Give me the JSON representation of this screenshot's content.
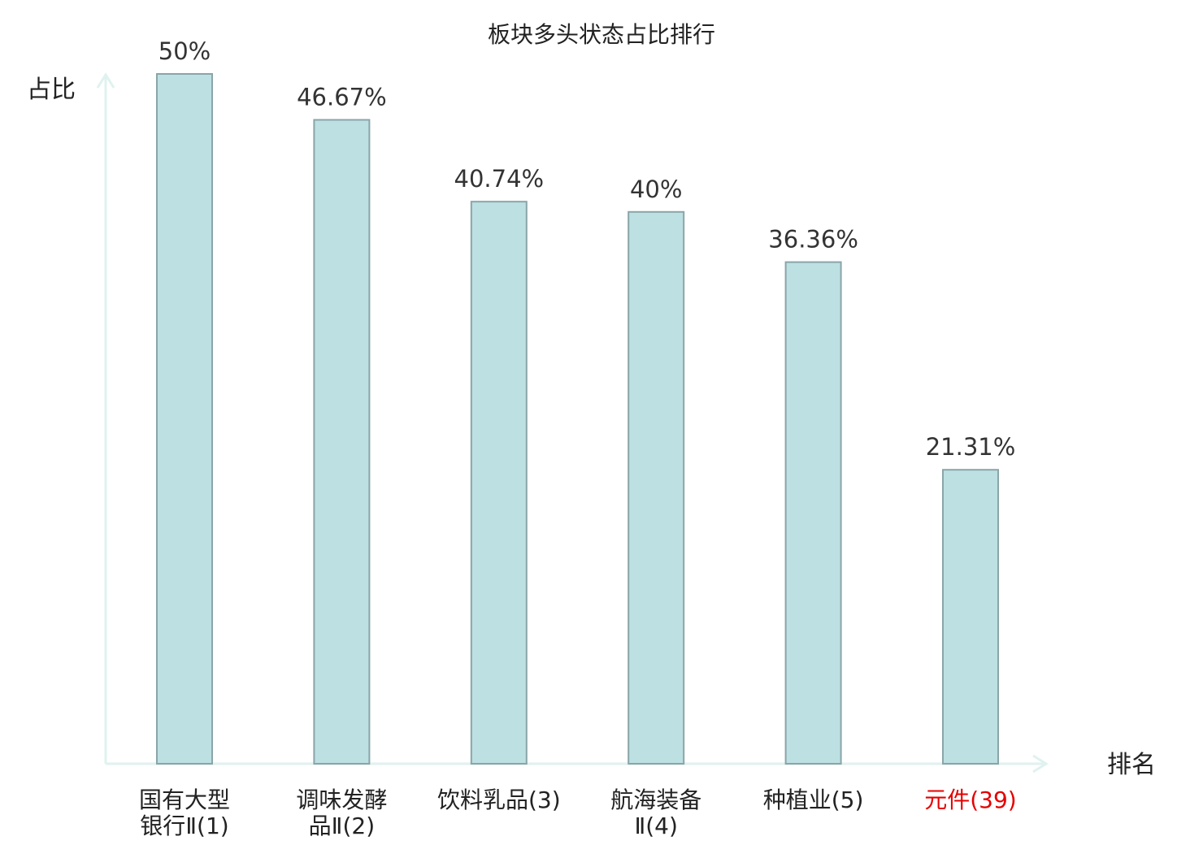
{
  "chart_data": {
    "type": "bar",
    "title": "板块多头状态占比排行",
    "ylabel": "占比",
    "xlabel": "排名",
    "categories": [
      [
        "国有大型",
        "银行Ⅱ(1)"
      ],
      [
        "调味发酵",
        "品Ⅱ(2)"
      ],
      [
        "饮料乳品(3)"
      ],
      [
        "航海装备",
        "Ⅱ(4)"
      ],
      [
        "种植业(5)"
      ],
      [
        "元件(39)"
      ]
    ],
    "values": [
      50,
      46.67,
      40.74,
      40,
      36.36,
      21.31
    ],
    "value_labels": [
      "50%",
      "46.67%",
      "40.74%",
      "40%",
      "36.36%",
      "21.31%"
    ],
    "highlight_index": 5,
    "ylim": [
      0,
      50
    ],
    "grid": false,
    "colors": {
      "bar_fill": "#bde0e3",
      "bar_stroke": "#8aa5a8",
      "axis": "#dff2ef",
      "highlight_text": "#e60000",
      "text": "#222222"
    }
  }
}
